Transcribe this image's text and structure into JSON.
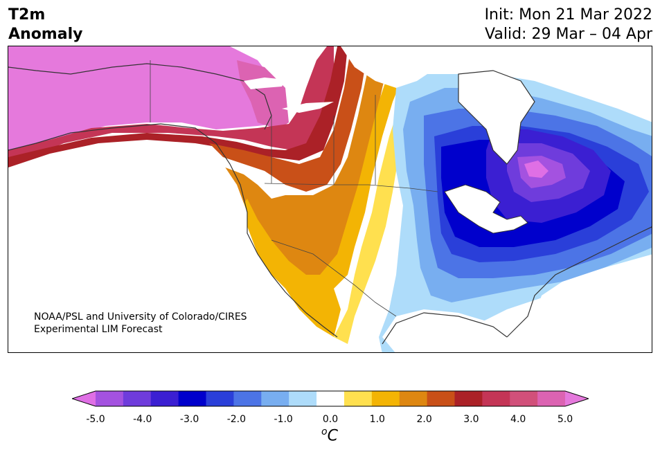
{
  "header": {
    "title_line1": "T2m",
    "title_line2": "Anomaly",
    "init_text": "Init: Mon 21 Mar 2022",
    "valid_text": "Valid: 29 Mar – 04 Apr"
  },
  "credit": {
    "line1": "NOAA/PSL and University of Colorado/CIRES",
    "line2": "Experimental LIM Forecast"
  },
  "colorbar": {
    "unit_super": "o",
    "unit_main": "C",
    "tick_labels": [
      "-5.0",
      "-4.0",
      "-3.0",
      "-2.0",
      "-1.0",
      "0.0",
      "1.0",
      "2.0",
      "3.0",
      "4.0",
      "5.0"
    ],
    "colors": [
      "#df6fe5",
      "#a452e0",
      "#6f3cdc",
      "#3b1fd2",
      "#0000cc",
      "#2a3fd9",
      "#4c74e6",
      "#78aef0",
      "#aedcfa",
      "#ffffff",
      "#ffe04f",
      "#f3b404",
      "#de8711",
      "#c95018",
      "#ab2127",
      "#c43556",
      "#d1507a",
      "#dc63b2",
      "#e579dc"
    ]
  },
  "map_colors": {
    "land_neutral": "#ffffff",
    "coast": "#333333"
  }
}
